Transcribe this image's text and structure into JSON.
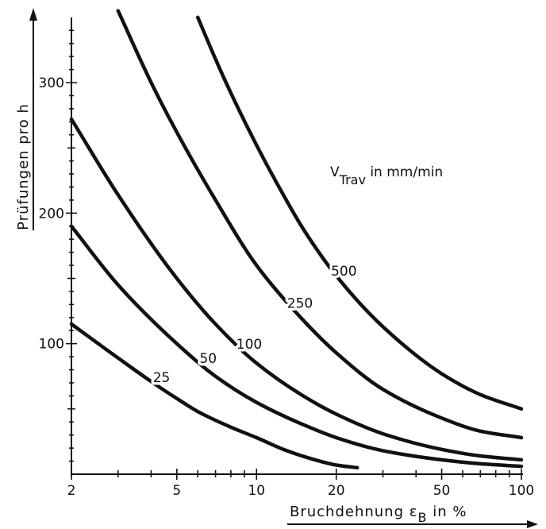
{
  "chart_data": {
    "type": "line",
    "title": "",
    "xlabel": "Bruchdehnung ε",
    "xlabel_subscript": "B",
    "xlabel_suffix": " in %",
    "ylabel": "Prüfungen pro h",
    "x_scale": "log",
    "xlim": [
      2,
      100
    ],
    "ylim": [
      0,
      350
    ],
    "x_ticks": [
      2,
      5,
      10,
      20,
      50,
      100
    ],
    "x_tick_labels": [
      "2",
      "5",
      "10",
      "20",
      "50",
      "100"
    ],
    "y_ticks": [
      100,
      200,
      300
    ],
    "y_tick_labels": [
      "100",
      "200",
      "300"
    ],
    "legend_title": "V",
    "legend_title_subscript": "Trav",
    "legend_title_suffix": " in mm/min",
    "grid": false,
    "series": [
      {
        "name": "25",
        "x": [
          2,
          3,
          4,
          5,
          6,
          8,
          10,
          13,
          16,
          20,
          24
        ],
        "y": [
          115,
          89,
          71,
          58,
          48,
          36,
          28,
          18,
          12,
          7,
          5
        ]
      },
      {
        "name": "50",
        "x": [
          2,
          3,
          5,
          7,
          10,
          15,
          20,
          30,
          50,
          70,
          100
        ],
        "y": [
          190,
          145,
          100,
          75,
          55,
          38,
          28,
          18,
          11,
          8,
          6
        ]
      },
      {
        "name": "100",
        "x": [
          2,
          3,
          5,
          7,
          10,
          15,
          20,
          30,
          50,
          70,
          100
        ],
        "y": [
          272,
          214,
          150,
          115,
          85,
          60,
          46,
          31,
          19,
          14,
          11
        ]
      },
      {
        "name": "250",
        "x": [
          3,
          4,
          5,
          7,
          10,
          15,
          20,
          30,
          50,
          70,
          100
        ],
        "y": [
          355,
          300,
          262,
          210,
          160,
          118,
          93,
          65,
          43,
          33,
          28
        ]
      },
      {
        "name": "500",
        "x": [
          6,
          7,
          8,
          10,
          12,
          15,
          20,
          30,
          50,
          70,
          100
        ],
        "y": [
          350,
          318,
          292,
          252,
          222,
          188,
          152,
          113,
          77,
          61,
          50
        ]
      }
    ]
  }
}
